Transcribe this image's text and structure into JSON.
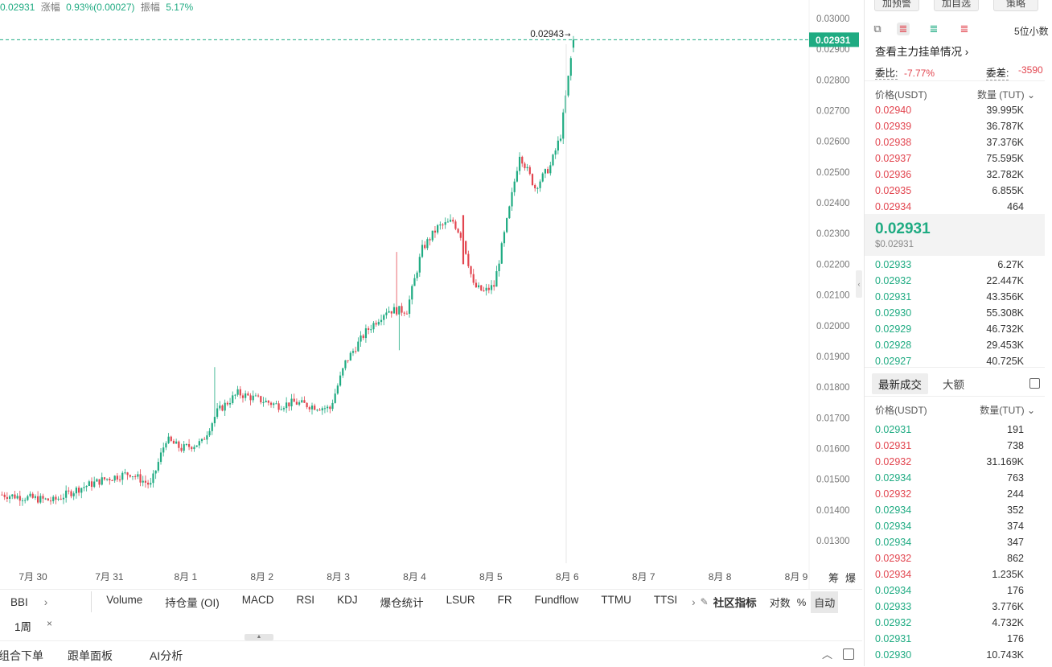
{
  "top_stats": {
    "price": "0.02931",
    "change_label": "涨幅",
    "change_value": "0.93%(0.00027)",
    "amplitude_label": "振幅",
    "amplitude_value": "5.17%"
  },
  "colors": {
    "up": "#1fab82",
    "down": "#e2454f",
    "grid_text": "#777"
  },
  "chart_data": {
    "type": "candlestick",
    "y_ticks": [
      "0.03000",
      "0.02900",
      "0.02800",
      "0.02700",
      "0.02600",
      "0.02500",
      "0.02400",
      "0.02300",
      "0.02200",
      "0.02100",
      "0.02000",
      "0.01900",
      "0.01800",
      "0.01700",
      "0.01600",
      "0.01500",
      "0.01400",
      "0.01300"
    ],
    "ylim": [
      0.0124,
      0.0305
    ],
    "x_ticks": [
      "7月 30",
      "7月 31",
      "8月 1",
      "8月 2",
      "8月 3",
      "8月 4",
      "8月 5",
      "8月 6",
      "8月 7",
      "8月 8",
      "8月 9"
    ],
    "x_labels_right": [
      "筹",
      "爆"
    ],
    "current_price_label": "0.02931",
    "current_price": 0.02931,
    "high_marker_label": "0.02943",
    "high_marker": 0.02943,
    "anchors": [
      [
        0,
        0.0145
      ],
      [
        10,
        0.0144
      ],
      [
        20,
        0.0143
      ],
      [
        30,
        0.0147
      ],
      [
        40,
        0.015
      ],
      [
        50,
        0.0152
      ],
      [
        58,
        0.0148
      ],
      [
        64,
        0.0163
      ],
      [
        70,
        0.016
      ],
      [
        78,
        0.0162
      ],
      [
        84,
        0.0172
      ],
      [
        92,
        0.0178
      ],
      [
        100,
        0.0176
      ],
      [
        108,
        0.0174
      ],
      [
        114,
        0.0175
      ],
      [
        120,
        0.0174
      ],
      [
        128,
        0.0173
      ],
      [
        134,
        0.0188
      ],
      [
        142,
        0.0198
      ],
      [
        150,
        0.0205
      ],
      [
        158,
        0.0205
      ],
      [
        164,
        0.0225
      ],
      [
        170,
        0.0232
      ],
      [
        176,
        0.0234
      ],
      [
        180,
        0.0228
      ],
      [
        184,
        0.0213
      ],
      [
        188,
        0.0211
      ],
      [
        192,
        0.0213
      ],
      [
        198,
        0.0238
      ],
      [
        202,
        0.0256
      ],
      [
        208,
        0.0245
      ],
      [
        214,
        0.0252
      ],
      [
        218,
        0.0262
      ],
      [
        223,
        0.02931
      ]
    ]
  },
  "indicators": {
    "left": "BBI",
    "items": [
      "Volume",
      "持仓量 (OI)",
      "MACD",
      "RSI",
      "KDJ",
      "爆仓统计",
      "LSUR",
      "FR",
      "Fundflow",
      "TTMU",
      "TTSI"
    ],
    "community": "社区指标",
    "log": "对数",
    "percent": "%",
    "auto": "自动"
  },
  "period": {
    "label": "1周",
    "close": "×"
  },
  "bottom": {
    "tabs": [
      "组合下单",
      "跟单面板",
      "AI分析"
    ]
  },
  "right_panel": {
    "top_buttons": [
      "加预警",
      "加自选",
      "策略"
    ],
    "precision": "5位小数",
    "main_orders_link": "查看主力挂单情况",
    "ratio_label": "委比:",
    "ratio_value": "-7.77%",
    "diff_label": "委差:",
    "diff_value": "-3590",
    "orderbook_header": {
      "price": "价格(USDT)",
      "qty": "数量 (TUT)"
    },
    "asks": [
      {
        "p": "0.02940",
        "q": "39.995K"
      },
      {
        "p": "0.02939",
        "q": "36.787K"
      },
      {
        "p": "0.02938",
        "q": "37.376K"
      },
      {
        "p": "0.02937",
        "q": "75.595K"
      },
      {
        "p": "0.02936",
        "q": "32.782K"
      },
      {
        "p": "0.02935",
        "q": "6.855K"
      },
      {
        "p": "0.02934",
        "q": "464"
      }
    ],
    "last_price": "0.02931",
    "last_price_usd": "$0.02931",
    "bids": [
      {
        "p": "0.02933",
        "q": "6.27K"
      },
      {
        "p": "0.02932",
        "q": "22.447K"
      },
      {
        "p": "0.02931",
        "q": "43.356K"
      },
      {
        "p": "0.02930",
        "q": "55.308K"
      },
      {
        "p": "0.02929",
        "q": "46.732K"
      },
      {
        "p": "0.02928",
        "q": "29.453K"
      },
      {
        "p": "0.02927",
        "q": "40.725K"
      }
    ],
    "trades_tabs": [
      "最新成交",
      "大额"
    ],
    "trades_header": {
      "price": "价格(USDT)",
      "qty": "数量(TUT)"
    },
    "trades": [
      {
        "p": "0.02931",
        "q": "191",
        "s": "up"
      },
      {
        "p": "0.02931",
        "q": "738",
        "s": "down"
      },
      {
        "p": "0.02932",
        "q": "31.169K",
        "s": "down"
      },
      {
        "p": "0.02934",
        "q": "763",
        "s": "up"
      },
      {
        "p": "0.02932",
        "q": "244",
        "s": "down"
      },
      {
        "p": "0.02934",
        "q": "352",
        "s": "up"
      },
      {
        "p": "0.02934",
        "q": "374",
        "s": "up"
      },
      {
        "p": "0.02934",
        "q": "347",
        "s": "up"
      },
      {
        "p": "0.02932",
        "q": "862",
        "s": "down"
      },
      {
        "p": "0.02934",
        "q": "1.235K",
        "s": "down"
      },
      {
        "p": "0.02934",
        "q": "176",
        "s": "up"
      },
      {
        "p": "0.02933",
        "q": "3.776K",
        "s": "up"
      },
      {
        "p": "0.02932",
        "q": "4.732K",
        "s": "up"
      },
      {
        "p": "0.02931",
        "q": "176",
        "s": "up"
      },
      {
        "p": "0.02930",
        "q": "10.743K",
        "s": "up"
      }
    ]
  }
}
